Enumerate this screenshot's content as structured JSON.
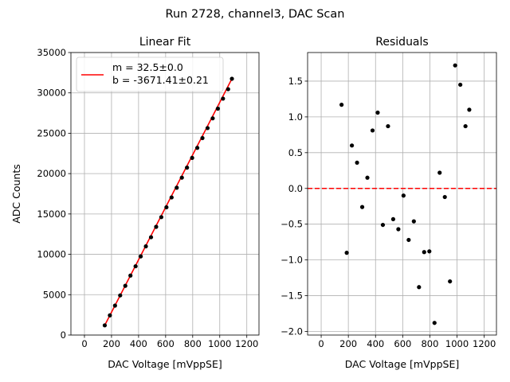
{
  "suptitle": "Run 2728, channel3, DAC Scan",
  "chart_data": [
    {
      "type": "line+scatter",
      "title": "Linear Fit",
      "xlabel": "DAC Voltage [mVppSE]",
      "ylabel": "ADC Counts",
      "xlim": [
        -100,
        1290
      ],
      "ylim": [
        0,
        35000
      ],
      "xticks": [
        0,
        200,
        400,
        600,
        800,
        1000,
        1200
      ],
      "xtick_labels": [
        "0",
        "200",
        "400",
        "600",
        "800",
        "1000",
        "1200"
      ],
      "yticks": [
        0,
        5000,
        10000,
        15000,
        20000,
        25000,
        30000,
        35000
      ],
      "ytick_labels": [
        "0",
        "5000",
        "10000",
        "15000",
        "20000",
        "25000",
        "30000",
        "35000"
      ],
      "grid": true,
      "legend_position": "upper-left",
      "legend": [
        "m = 32.5±0.0",
        "b = -3671.41±0.21"
      ],
      "fit": {
        "slope": 32.5,
        "intercept": -3671.41,
        "color": "#ff0000"
      },
      "point_color": "#000000",
      "x": [
        150,
        188,
        226,
        264,
        302,
        340,
        378,
        416,
        454,
        492,
        530,
        568,
        606,
        644,
        682,
        720,
        758,
        796,
        834,
        872,
        910,
        948,
        986,
        1024,
        1062,
        1090
      ],
      "y": [
        1200,
        2440,
        3650,
        4910,
        6100,
        7370,
        8520,
        9750,
        10990,
        12120,
        13410,
        14610,
        15830,
        17050,
        18250,
        19500,
        20740,
        21950,
        23190,
        24400,
        25640,
        26850,
        28050,
        29290,
        30460,
        31750
      ]
    },
    {
      "type": "scatter",
      "title": "Residuals",
      "xlabel": "DAC Voltage [mVppSE]",
      "ylabel": "",
      "xlim": [
        -100,
        1290
      ],
      "ylim": [
        -2.05,
        1.9
      ],
      "xticks": [
        0,
        200,
        400,
        600,
        800,
        1000,
        1200
      ],
      "xtick_labels": [
        "0",
        "200",
        "400",
        "600",
        "800",
        "1000",
        "1200"
      ],
      "yticks": [
        -2.0,
        -1.5,
        -1.0,
        -0.5,
        0.0,
        0.5,
        1.0,
        1.5
      ],
      "ytick_labels": [
        "−2.0",
        "−1.5",
        "−1.0",
        "−0.5",
        "0.0",
        "0.5",
        "1.0",
        "1.5"
      ],
      "grid": true,
      "zero_line_color": "#ff0000",
      "point_color": "#000000",
      "x": [
        150,
        188,
        226,
        264,
        302,
        340,
        378,
        416,
        454,
        492,
        530,
        568,
        606,
        644,
        682,
        720,
        758,
        796,
        834,
        872,
        910,
        948,
        986,
        1024,
        1062,
        1090
      ],
      "y": [
        1.17,
        -0.9,
        0.6,
        0.36,
        -0.26,
        0.15,
        0.81,
        1.06,
        -0.51,
        0.87,
        -0.43,
        -0.57,
        -0.1,
        -0.72,
        -0.46,
        -1.38,
        -0.89,
        -0.88,
        -1.88,
        0.22,
        -0.12,
        -1.3,
        1.72,
        1.45,
        0.87,
        1.1
      ]
    }
  ]
}
